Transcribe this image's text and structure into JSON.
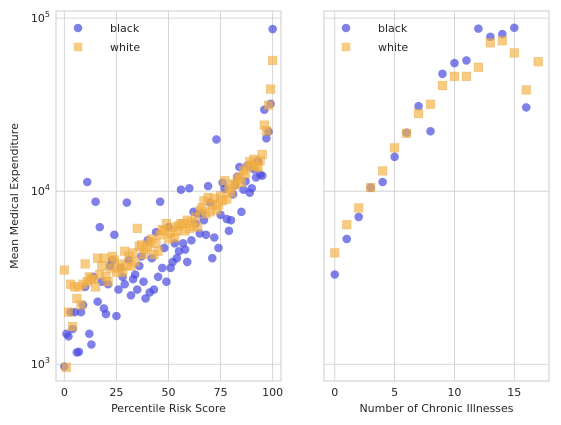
{
  "chart_data": [
    {
      "type": "scatter",
      "xlabel": "Percentile Risk Score",
      "ylabel": "Mean Medical Expenditure",
      "yscale": "log",
      "xlim": [
        -4,
        104
      ],
      "ylim": [
        800,
        110000
      ],
      "xticks": [
        {
          "v": 0,
          "label": "0"
        },
        {
          "v": 25,
          "label": "25"
        },
        {
          "v": 50,
          "label": "50"
        },
        {
          "v": 75,
          "label": "75"
        },
        {
          "v": 100,
          "label": "100"
        }
      ],
      "yticks": [
        {
          "v": 1000,
          "base": "10",
          "exp": "3"
        },
        {
          "v": 10000,
          "base": "10",
          "exp": "4"
        },
        {
          "v": 100000,
          "base": "10",
          "exp": "5"
        }
      ],
      "grid": true,
      "legend": "top-left",
      "series": [
        {
          "name": "black",
          "marker": "circle",
          "color": "#4a4ae0",
          "points": [
            [
              0,
              970
            ],
            [
              1,
              1500
            ],
            [
              2,
              1450
            ],
            [
              3,
              2000
            ],
            [
              4,
              1600
            ],
            [
              5,
              2000
            ],
            [
              6,
              1170
            ],
            [
              7,
              1180
            ],
            [
              8,
              2000
            ],
            [
              9,
              2200
            ],
            [
              10,
              2800
            ],
            [
              11,
              11300
            ],
            [
              12,
              1500
            ],
            [
              13,
              1300
            ],
            [
              14,
              3200
            ],
            [
              15,
              8700
            ],
            [
              16,
              2300
            ],
            [
              17,
              6200
            ],
            [
              18,
              3000
            ],
            [
              19,
              2100
            ],
            [
              20,
              1950
            ],
            [
              21,
              2900
            ],
            [
              22,
              3700
            ],
            [
              23,
              4000
            ],
            [
              24,
              5600
            ],
            [
              25,
              1900
            ],
            [
              26,
              2700
            ],
            [
              27,
              3600
            ],
            [
              28,
              3200
            ],
            [
              29,
              2900
            ],
            [
              30,
              8600
            ],
            [
              31,
              4000
            ],
            [
              32,
              2500
            ],
            [
              33,
              3100
            ],
            [
              34,
              3300
            ],
            [
              35,
              2700
            ],
            [
              36,
              3700
            ],
            [
              37,
              4200
            ],
            [
              38,
              3000
            ],
            [
              39,
              2400
            ],
            [
              40,
              5200
            ],
            [
              41,
              2600
            ],
            [
              42,
              4100
            ],
            [
              43,
              2700
            ],
            [
              44,
              5800
            ],
            [
              45,
              3200
            ],
            [
              46,
              8700
            ],
            [
              47,
              3600
            ],
            [
              48,
              4700
            ],
            [
              49,
              3000
            ],
            [
              50,
              6200
            ],
            [
              51,
              3600
            ],
            [
              52,
              3900
            ],
            [
              53,
              5000
            ],
            [
              54,
              4100
            ],
            [
              55,
              4500
            ],
            [
              56,
              10200
            ],
            [
              57,
              5000
            ],
            [
              58,
              4600
            ],
            [
              59,
              3900
            ],
            [
              60,
              10400
            ],
            [
              61,
              5200
            ],
            [
              62,
              7600
            ],
            [
              63,
              6500
            ],
            [
              64,
              7400
            ],
            [
              65,
              5700
            ],
            [
              66,
              7500
            ],
            [
              67,
              6800
            ],
            [
              68,
              5600
            ],
            [
              69,
              10700
            ],
            [
              70,
              8600
            ],
            [
              71,
              4100
            ],
            [
              72,
              5400
            ],
            [
              73,
              19900
            ],
            [
              74,
              4700
            ],
            [
              75,
              7300
            ],
            [
              76,
              11200
            ],
            [
              77,
              10300
            ],
            [
              78,
              6900
            ],
            [
              79,
              5900
            ],
            [
              80,
              6800
            ],
            [
              81,
              9600
            ],
            [
              82,
              10800
            ],
            [
              83,
              12100
            ],
            [
              84,
              13800
            ],
            [
              85,
              7600
            ],
            [
              86,
              10200
            ],
            [
              87,
              11400
            ],
            [
              88,
              14100
            ],
            [
              89,
              9800
            ],
            [
              90,
              10400
            ],
            [
              91,
              13400
            ],
            [
              92,
              12000
            ],
            [
              93,
              14900
            ],
            [
              94,
              12500
            ],
            [
              95,
              12300
            ],
            [
              96,
              29600
            ],
            [
              97,
              20200
            ],
            [
              98,
              22100
            ],
            [
              99,
              32000
            ],
            [
              100,
              86500
            ]
          ]
        },
        {
          "name": "white",
          "marker": "square",
          "color": "#f5b041",
          "points": [
            [
              0,
              3500
            ],
            [
              1,
              960
            ],
            [
              2,
              2000
            ],
            [
              3,
              2900
            ],
            [
              4,
              1650
            ],
            [
              5,
              2800
            ],
            [
              6,
              2400
            ],
            [
              7,
              2800
            ],
            [
              8,
              2200
            ],
            [
              9,
              2900
            ],
            [
              10,
              3800
            ],
            [
              11,
              3000
            ],
            [
              12,
              3200
            ],
            [
              13,
              3100
            ],
            [
              14,
              3100
            ],
            [
              15,
              2800
            ],
            [
              16,
              4100
            ],
            [
              17,
              3300
            ],
            [
              18,
              3700
            ],
            [
              19,
              4100
            ],
            [
              20,
              3200
            ],
            [
              21,
              3000
            ],
            [
              22,
              3600
            ],
            [
              23,
              4200
            ],
            [
              24,
              4000
            ],
            [
              25,
              3400
            ],
            [
              26,
              3600
            ],
            [
              27,
              3800
            ],
            [
              28,
              3400
            ],
            [
              29,
              4500
            ],
            [
              30,
              3700
            ],
            [
              31,
              4200
            ],
            [
              32,
              3700
            ],
            [
              33,
              4400
            ],
            [
              34,
              3900
            ],
            [
              35,
              6100
            ],
            [
              36,
              4800
            ],
            [
              37,
              4900
            ],
            [
              38,
              4300
            ],
            [
              39,
              4600
            ],
            [
              40,
              4800
            ],
            [
              41,
              5100
            ],
            [
              42,
              5300
            ],
            [
              43,
              4300
            ],
            [
              44,
              5000
            ],
            [
              45,
              4500
            ],
            [
              46,
              5600
            ],
            [
              47,
              6000
            ],
            [
              48,
              5900
            ],
            [
              49,
              6500
            ],
            [
              50,
              5300
            ],
            [
              51,
              5700
            ],
            [
              52,
              6200
            ],
            [
              53,
              5400
            ],
            [
              54,
              5900
            ],
            [
              55,
              6300
            ],
            [
              56,
              6500
            ],
            [
              57,
              6500
            ],
            [
              58,
              5900
            ],
            [
              59,
              6800
            ],
            [
              60,
              6100
            ],
            [
              61,
              6600
            ],
            [
              62,
              6300
            ],
            [
              63,
              7100
            ],
            [
              64,
              6200
            ],
            [
              65,
              7700
            ],
            [
              66,
              8000
            ],
            [
              67,
              8800
            ],
            [
              68,
              7400
            ],
            [
              69,
              9200
            ],
            [
              70,
              7600
            ],
            [
              71,
              8400
            ],
            [
              72,
              9100
            ],
            [
              73,
              7800
            ],
            [
              74,
              8300
            ],
            [
              75,
              9400
            ],
            [
              76,
              8800
            ],
            [
              77,
              11500
            ],
            [
              78,
              9000
            ],
            [
              79,
              10300
            ],
            [
              80,
              9800
            ],
            [
              81,
              11000
            ],
            [
              82,
              10900
            ],
            [
              83,
              11700
            ],
            [
              84,
              12100
            ],
            [
              85,
              11200
            ],
            [
              86,
              13200
            ],
            [
              87,
              12600
            ],
            [
              88,
              13800
            ],
            [
              89,
              14800
            ],
            [
              90,
              14100
            ],
            [
              91,
              15300
            ],
            [
              92,
              14000
            ],
            [
              93,
              13700
            ],
            [
              94,
              15000
            ],
            [
              95,
              16300
            ],
            [
              96,
              24100
            ],
            [
              97,
              22300
            ],
            [
              98,
              31400
            ],
            [
              99,
              38900
            ],
            [
              100,
              57000
            ]
          ]
        }
      ]
    },
    {
      "type": "scatter",
      "xlabel": "Number of Chronic Illnesses",
      "ylabel": "",
      "yscale": "log",
      "xlim": [
        -0.9,
        17.9
      ],
      "ylim": [
        800,
        110000
      ],
      "xticks": [
        {
          "v": 0,
          "label": "0"
        },
        {
          "v": 5,
          "label": "5"
        },
        {
          "v": 10,
          "label": "10"
        },
        {
          "v": 15,
          "label": "15"
        }
      ],
      "yticks": [
        {
          "v": 1000,
          "base": "",
          "exp": ""
        },
        {
          "v": 10000,
          "base": "",
          "exp": ""
        },
        {
          "v": 100000,
          "base": "",
          "exp": ""
        }
      ],
      "grid": true,
      "legend": "top-left",
      "series": [
        {
          "name": "black",
          "marker": "circle",
          "color": "#4a4ae0",
          "points": [
            [
              0,
              3300
            ],
            [
              1,
              5300
            ],
            [
              2,
              7100
            ],
            [
              3,
              10500
            ],
            [
              4,
              11300
            ],
            [
              5,
              15800
            ],
            [
              6,
              21800
            ],
            [
              7,
              31000
            ],
            [
              8,
              22200
            ],
            [
              9,
              47700
            ],
            [
              10,
              55000
            ],
            [
              11,
              57000
            ],
            [
              12,
              87000
            ],
            [
              13,
              78000
            ],
            [
              14,
              81000
            ],
            [
              15,
              88000
            ],
            [
              16,
              30500
            ]
          ]
        },
        {
          "name": "white",
          "marker": "square",
          "color": "#f5b041",
          "points": [
            [
              0,
              4400
            ],
            [
              1,
              6400
            ],
            [
              2,
              8000
            ],
            [
              3,
              10500
            ],
            [
              4,
              13100
            ],
            [
              5,
              17800
            ],
            [
              6,
              21600
            ],
            [
              7,
              28100
            ],
            [
              8,
              31800
            ],
            [
              9,
              40800
            ],
            [
              10,
              46100
            ],
            [
              11,
              46100
            ],
            [
              12,
              52000
            ],
            [
              13,
              72000
            ],
            [
              14,
              74000
            ],
            [
              15,
              63000
            ],
            [
              16,
              38500
            ],
            [
              17,
              56000
            ]
          ]
        }
      ]
    }
  ]
}
